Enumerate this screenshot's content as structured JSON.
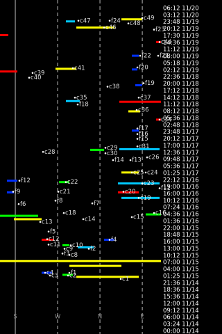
{
  "chart_data": {
    "type": "timeline",
    "xlim": [
      147.5,
      489.7
    ],
    "xticks": [
      {
        "value": 180,
        "label": "S"
      },
      {
        "value": 270,
        "label": "W"
      },
      {
        "value": 360,
        "label": "N"
      },
      {
        "value": 450,
        "label": "E"
      }
    ],
    "time_labels": [
      "06:12 11/20",
      "03:12 11/20",
      "23:48 11/19",
      "20:12 11/19",
      "17:30 11/19",
      "14:36 11/19",
      "11:12 11/19",
      "08:00 11/19",
      "05:18 11/19",
      "02:12 11/19",
      "22:36 11/18",
      "20:00 11/18",
      "17:12 11/18",
      "14:12 11/18",
      "11:12 11/18",
      "08:12 11/18",
      "05:36 11/18",
      "02:48 11/18",
      "23:48 11/17",
      "20:12 11/17",
      "17:00 11/17",
      "12:36 11/17",
      "09:48 11/17",
      "05:36 11/17",
      "01:25 11/17",
      "22:12 11/16",
      "19:00 11/16",
      "16:00 11/16",
      "10:12 11/16",
      "07:24 11/16",
      "04:36 11/16",
      "01:36 11/16",
      "22:00 11/15",
      "18:48 11/15",
      "16:00 11/15",
      "13:00 11/15",
      "10:12 11/15",
      "07:00 11/15",
      "04:00 11/15",
      "01:25 11/15",
      "21:36 11/14",
      "18:36 11/14",
      "15:36 11/14",
      "12:00 11/14",
      "09:12 11/14",
      "06:00 11/14",
      "03:24 11/14",
      "00:00 11/14"
    ],
    "tracks": [
      {
        "color": "#00c8ff",
        "az": [
          287.6,
          306.8
        ],
        "row": 1.9
      },
      {
        "color": "#ffff00",
        "az": [
          309.8,
          390.9
        ],
        "row": 2.8
      },
      {
        "color": "#ffff00",
        "az": [
          405.6,
          449.9
        ],
        "row": 1.6
      },
      {
        "color": "#ff0000",
        "az": [
          147.5,
          165.2
        ],
        "row": 3.9
      },
      {
        "color": "#ff0000",
        "az": [
          479.4,
          489.7
        ],
        "row": 4.9
      },
      {
        "color": "#0030ff",
        "az": [
          427.8,
          442.5
        ],
        "row": 6.9
      },
      {
        "color": "#0030ff",
        "az": [
          427.8,
          439.6
        ],
        "row": 8.9
      },
      {
        "color": "#ff0000",
        "az": [
          147.5,
          184.4
        ],
        "row": 9.2
      },
      {
        "color": "#ffff00",
        "az": [
          265.5,
          309.8
        ],
        "row": 8.8
      },
      {
        "color": "#0030ff",
        "az": [
          435.1,
          449.9
        ],
        "row": 11.2
      },
      {
        "color": "#00c8ff",
        "az": [
          287.6,
          317.1
        ],
        "row": 13.5
      },
      {
        "color": "#ff0000",
        "az": [
          401.2,
          489.7
        ],
        "row": 13.6
      },
      {
        "color": "#ffff00",
        "az": [
          420.4,
          445.5
        ],
        "row": 15.0
      },
      {
        "color": "#ff0000",
        "az": [
          479.4,
          489.7
        ],
        "row": 16.2
      },
      {
        "color": "#0030ff",
        "az": [
          427.8,
          442.5
        ],
        "row": 17.8
      },
      {
        "color": "#00c8ff",
        "az": [
          401.2,
          486.8
        ],
        "row": 20.5
      },
      {
        "color": "#00ff00",
        "az": [
          339.3,
          368.8
        ],
        "row": 20.6
      },
      {
        "color": "#ffff00",
        "az": [
          405.6,
          442.5
        ],
        "row": 23.9
      },
      {
        "color": "#0030ff",
        "az": [
          162.3,
          184.4
        ],
        "row": 25.1
      },
      {
        "color": "#00ff00",
        "az": [
          272.9,
          295
        ],
        "row": 25.3
      },
      {
        "color": "#00c8ff",
        "az": [
          398.3,
          486.8
        ],
        "row": 25.5
      },
      {
        "color": "#ff0000",
        "az": [
          398.3,
          442.5
        ],
        "row": 26.8
      },
      {
        "color": "#00c8ff",
        "az": [
          405.6,
          486.8
        ],
        "row": 27.6
      },
      {
        "color": "#0030ff",
        "az": [
          162.3,
          177
        ],
        "row": 26.8
      },
      {
        "color": "#00ff00",
        "az": [
          147.5,
          228.6
        ],
        "row": 30.2
      },
      {
        "color": "#ffff00",
        "az": [
          177,
          236
        ],
        "row": 30.7
      },
      {
        "color": "#00ff00",
        "az": [
          457.3,
          489.7
        ],
        "row": 30.0
      },
      {
        "color": "#ff0000",
        "az": [
          236,
          262.6
        ],
        "row": 33.7
      },
      {
        "color": "#0030ff",
        "az": [
          368.8,
          391
        ],
        "row": 33.7
      },
      {
        "color": "#00ff00",
        "az": [
          280.3,
          295
        ],
        "row": 34.5
      },
      {
        "color": "#00c8ff",
        "az": [
          312.7,
          346.6
        ],
        "row": 34.8
      },
      {
        "color": "#ffff00",
        "az": [
          147.5,
          489.7
        ],
        "row": 36.8
      },
      {
        "color": "#ffff00",
        "az": [
          295,
          405.6
        ],
        "row": 37.5
      },
      {
        "color": "#0030ff",
        "az": [
          236,
          258.1
        ],
        "row": 38.5
      },
      {
        "color": "#ffff00",
        "az": [
          309.8,
          442.5
        ],
        "row": 39.1
      },
      {
        "color": "#00ff00",
        "az": [
          280.3,
          302.4
        ],
        "row": 38.8
      }
    ],
    "labels": [
      {
        "name": "c47",
        "az": 314.2,
        "row": 1.8
      },
      {
        "name": "f24",
        "az": 380.6,
        "row": 1.8
      },
      {
        "name": "c49",
        "az": 449.9,
        "row": 1.4
      },
      {
        "name": "c48",
        "az": 420.4,
        "row": 2.2
      },
      {
        "name": "c46",
        "az": 368.8,
        "row": 2.8
      },
      {
        "name": "f23",
        "az": 475,
        "row": 3.1
      },
      {
        "name": "c44",
        "az": 486.8,
        "row": 4.9
      },
      {
        "name": "f22",
        "az": 445.5,
        "row": 6.9
      },
      {
        "name": "f21",
        "az": 483.8,
        "row": 6.9
      },
      {
        "name": "f20",
        "az": 439.6,
        "row": 8.6
      },
      {
        "name": "c39",
        "az": 216.8,
        "row": 9.4
      },
      {
        "name": "c40",
        "az": 209.5,
        "row": 10.1
      },
      {
        "name": "c41",
        "az": 302.4,
        "row": 8.7
      },
      {
        "name": "f19",
        "az": 452.8,
        "row": 10.9
      },
      {
        "name": "c38",
        "az": 376.1,
        "row": 11.4
      },
      {
        "name": "c35",
        "az": 306.8,
        "row": 13.0
      },
      {
        "name": "f18",
        "az": 312.7,
        "row": 14.0
      },
      {
        "name": "c37",
        "az": 442.5,
        "row": 13.0
      },
      {
        "name": "c36",
        "az": 438.1,
        "row": 14.8
      },
      {
        "name": "c34",
        "az": 486.8,
        "row": 16.2
      },
      {
        "name": "f17",
        "az": 439.6,
        "row": 17.5
      },
      {
        "name": "f16",
        "az": 439.6,
        "row": 18.3
      },
      {
        "name": "f15",
        "az": 439.6,
        "row": 19.0
      },
      {
        "name": "c31",
        "az": 439.6,
        "row": 20.1
      },
      {
        "name": "c28",
        "az": 239,
        "row": 20.9
      },
      {
        "name": "c29",
        "az": 371.7,
        "row": 20.3
      },
      {
        "name": "c30",
        "az": 371.7,
        "row": 21.1
      },
      {
        "name": "c26",
        "az": 460.2,
        "row": 21.7
      },
      {
        "name": "f13",
        "az": 424.8,
        "row": 22.1
      },
      {
        "name": "f14",
        "az": 387.9,
        "row": 22.1
      },
      {
        "name": "c25",
        "az": 427.8,
        "row": 23.9
      },
      {
        "name": "c24",
        "az": 457.3,
        "row": 23.9
      },
      {
        "name": "f12",
        "az": 188.8,
        "row": 25.1
      },
      {
        "name": "c22",
        "az": 287.6,
        "row": 25.3
      },
      {
        "name": "c23",
        "az": 449.9,
        "row": 25.5
      },
      {
        "name": "f11",
        "az": 486.8,
        "row": 26.2
      },
      {
        "name": "c21",
        "az": 271.4,
        "row": 26.7
      },
      {
        "name": "f9",
        "az": 175.5,
        "row": 26.7
      },
      {
        "name": "c20",
        "az": 410,
        "row": 26.7
      },
      {
        "name": "c19",
        "az": 442.5,
        "row": 27.6
      },
      {
        "name": "f8",
        "az": 265.5,
        "row": 28.0
      },
      {
        "name": "f7",
        "az": 343.7,
        "row": 28.4
      },
      {
        "name": "f6",
        "az": 187.3,
        "row": 28.5
      },
      {
        "name": "c18",
        "az": 283.2,
        "row": 29.8
      },
      {
        "name": "c16",
        "az": 475,
        "row": 29.8
      },
      {
        "name": "c15",
        "az": 427.8,
        "row": 30.4
      },
      {
        "name": "c14",
        "az": 324.5,
        "row": 30.7
      },
      {
        "name": "c13",
        "az": 233.1,
        "row": 31.1
      },
      {
        "name": "f5",
        "az": 250.8,
        "row": 32.5
      },
      {
        "name": "c12",
        "az": 247.8,
        "row": 33.6
      },
      {
        "name": "c11",
        "az": 250.8,
        "row": 34.4
      },
      {
        "name": "f4",
        "az": 380.6,
        "row": 33.7
      },
      {
        "name": "c10",
        "az": 298,
        "row": 34.5
      },
      {
        "name": "f2",
        "az": 336.3,
        "row": 35.0
      },
      {
        "name": "c9",
        "az": 284.7,
        "row": 35.0
      },
      {
        "name": "f3",
        "az": 280.3,
        "row": 35.7
      },
      {
        "name": "c8",
        "az": 295,
        "row": 35.9
      },
      {
        "name": "c4",
        "az": 243.4,
        "row": 38.5
      },
      {
        "name": "c3",
        "az": 253.7,
        "row": 38.9
      },
      {
        "name": "c2",
        "az": 292.1,
        "row": 38.9
      },
      {
        "name": "f1",
        "az": 295,
        "row": 38.5
      },
      {
        "name": "c1",
        "az": 404.2,
        "row": 39.4
      }
    ]
  }
}
